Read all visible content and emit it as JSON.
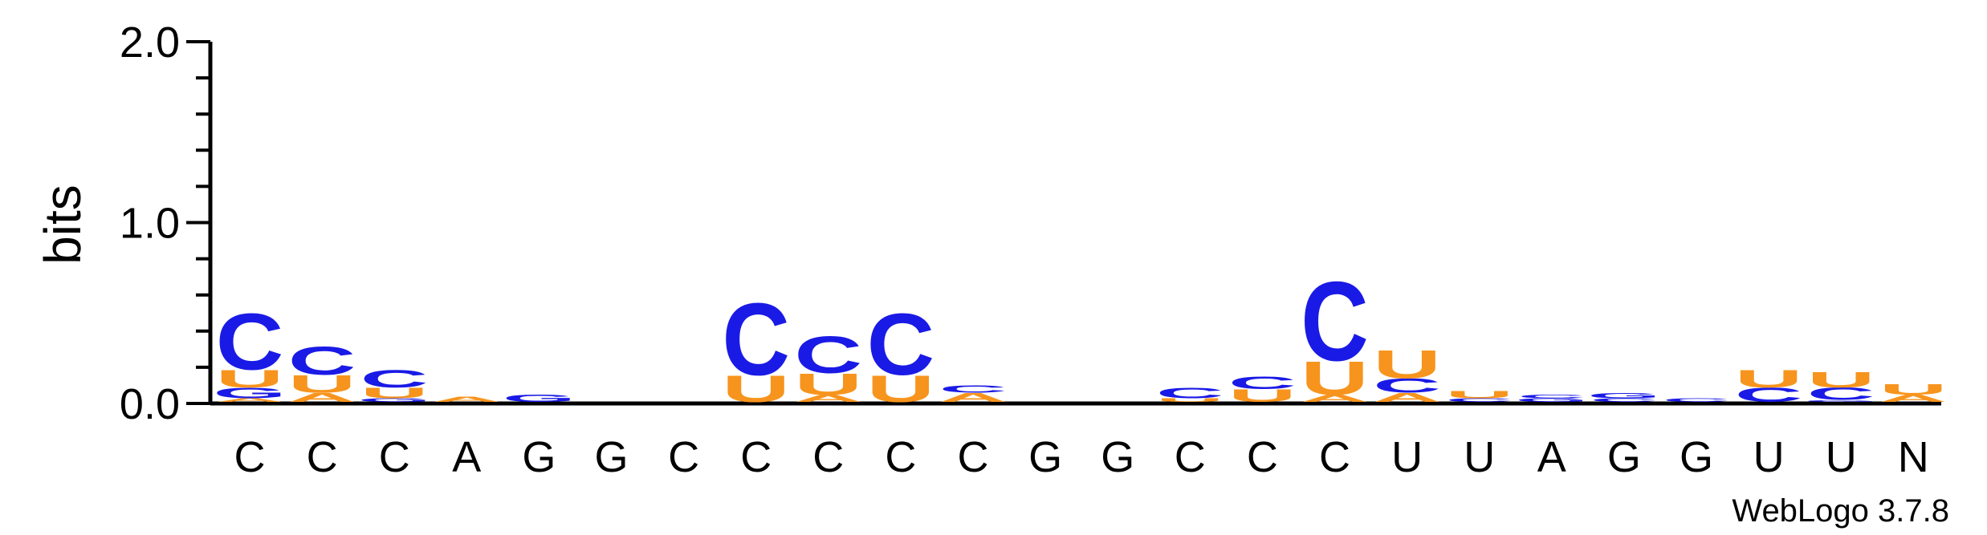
{
  "chart_data": {
    "type": "sequence-logo",
    "title": "",
    "ylabel": "bits",
    "ylim": [
      0,
      2.0
    ],
    "yticks": [
      "0.0",
      "1.0",
      "2.0"
    ],
    "credit": "WebLogo 3.7.8",
    "colors": {
      "C": "#1a1ae6",
      "U": "#f7941d",
      "G": "#1a1ae6",
      "A": "#f7941d"
    },
    "positions": [
      {
        "label": "C",
        "stack": [
          {
            "letter": "A",
            "bits": 0.02
          },
          {
            "letter": "G",
            "bits": 0.06
          },
          {
            "letter": "U",
            "bits": 0.1
          },
          {
            "letter": "C",
            "bits": 0.32
          }
        ]
      },
      {
        "label": "C",
        "stack": [
          {
            "letter": "A",
            "bits": 0.05
          },
          {
            "letter": "U",
            "bits": 0.1
          },
          {
            "letter": "C",
            "bits": 0.16
          }
        ]
      },
      {
        "label": "C",
        "stack": [
          {
            "letter": "G",
            "bits": 0.02
          },
          {
            "letter": "U",
            "bits": 0.06
          },
          {
            "letter": "C",
            "bits": 0.1
          }
        ]
      },
      {
        "label": "A",
        "stack": [
          {
            "letter": "A",
            "bits": 0.03
          }
        ]
      },
      {
        "label": "G",
        "stack": [
          {
            "letter": "G",
            "bits": 0.04
          }
        ]
      },
      {
        "label": "G",
        "stack": []
      },
      {
        "label": "C",
        "stack": []
      },
      {
        "label": "C",
        "stack": [
          {
            "letter": "U",
            "bits": 0.15
          },
          {
            "letter": "C",
            "bits": 0.41
          }
        ]
      },
      {
        "label": "C",
        "stack": [
          {
            "letter": "A",
            "bits": 0.04
          },
          {
            "letter": "U",
            "bits": 0.12
          },
          {
            "letter": "C",
            "bits": 0.21
          }
        ]
      },
      {
        "label": "C",
        "stack": [
          {
            "letter": "U",
            "bits": 0.15
          },
          {
            "letter": "C",
            "bits": 0.35
          }
        ]
      },
      {
        "label": "C",
        "stack": [
          {
            "letter": "A",
            "bits": 0.05
          },
          {
            "letter": "C",
            "bits": 0.04
          }
        ]
      },
      {
        "label": "G",
        "stack": []
      },
      {
        "label": "G",
        "stack": []
      },
      {
        "label": "C",
        "stack": [
          {
            "letter": "U",
            "bits": 0.02
          },
          {
            "letter": "C",
            "bits": 0.06
          }
        ]
      },
      {
        "label": "C",
        "stack": [
          {
            "letter": "U",
            "bits": 0.07
          },
          {
            "letter": "C",
            "bits": 0.07
          }
        ]
      },
      {
        "label": "C",
        "stack": [
          {
            "letter": "A",
            "bits": 0.04
          },
          {
            "letter": "U",
            "bits": 0.19
          },
          {
            "letter": "C",
            "bits": 0.45
          }
        ]
      },
      {
        "label": "U",
        "stack": [
          {
            "letter": "A",
            "bits": 0.05
          },
          {
            "letter": "C",
            "bits": 0.08
          },
          {
            "letter": "U",
            "bits": 0.16
          }
        ]
      },
      {
        "label": "U",
        "stack": [
          {
            "letter": "C",
            "bits": 0.02
          },
          {
            "letter": "U",
            "bits": 0.04
          }
        ]
      },
      {
        "label": "A",
        "stack": [
          {
            "letter": "G",
            "bits": 0.02
          },
          {
            "letter": "C",
            "bits": 0.02
          }
        ]
      },
      {
        "label": "G",
        "stack": [
          {
            "letter": "C",
            "bits": 0.02
          },
          {
            "letter": "G",
            "bits": 0.03
          }
        ]
      },
      {
        "label": "G",
        "stack": [
          {
            "letter": "C",
            "bits": 0.02
          }
        ]
      },
      {
        "label": "U",
        "stack": [
          {
            "letter": "C",
            "bits": 0.08
          },
          {
            "letter": "U",
            "bits": 0.1
          }
        ]
      },
      {
        "label": "U",
        "stack": [
          {
            "letter": "G",
            "bits": 0.01
          },
          {
            "letter": "C",
            "bits": 0.07
          },
          {
            "letter": "U",
            "bits": 0.09
          }
        ]
      },
      {
        "label": "N",
        "stack": [
          {
            "letter": "A",
            "bits": 0.04
          },
          {
            "letter": "U",
            "bits": 0.06
          }
        ]
      }
    ]
  }
}
